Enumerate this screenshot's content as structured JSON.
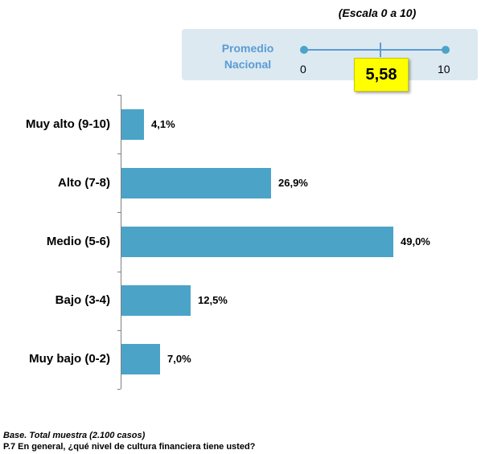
{
  "header": {
    "scale_note": "(Escala 0 a 10)",
    "average_label_line1": "Promedio",
    "average_label_line2": "Nacional",
    "scale_min": "0",
    "scale_max": "10",
    "average_value": "5,58"
  },
  "chart_data": {
    "type": "bar",
    "orientation": "horizontal",
    "categories": [
      "Muy alto (9-10)",
      "Alto (7-8)",
      "Medio (5-6)",
      "Bajo (3-4)",
      "Muy bajo (0-2)"
    ],
    "values": [
      4.1,
      26.9,
      49.0,
      12.5,
      7.0
    ],
    "value_labels": [
      "4,1%",
      "26,9%",
      "49,0%",
      "12,5%",
      "7,0%"
    ],
    "unit": "%",
    "xlim": [
      0,
      55
    ],
    "grid": false,
    "legend": "none",
    "bar_color": "#4ba3c8",
    "average": {
      "value": 5.58,
      "scale": [
        0,
        10
      ]
    }
  },
  "footnotes": {
    "base": "Base. Total muestra (2.100 casos)",
    "question": "P.7 En general, ¿qué nivel de cultura financiera tiene usted?"
  }
}
